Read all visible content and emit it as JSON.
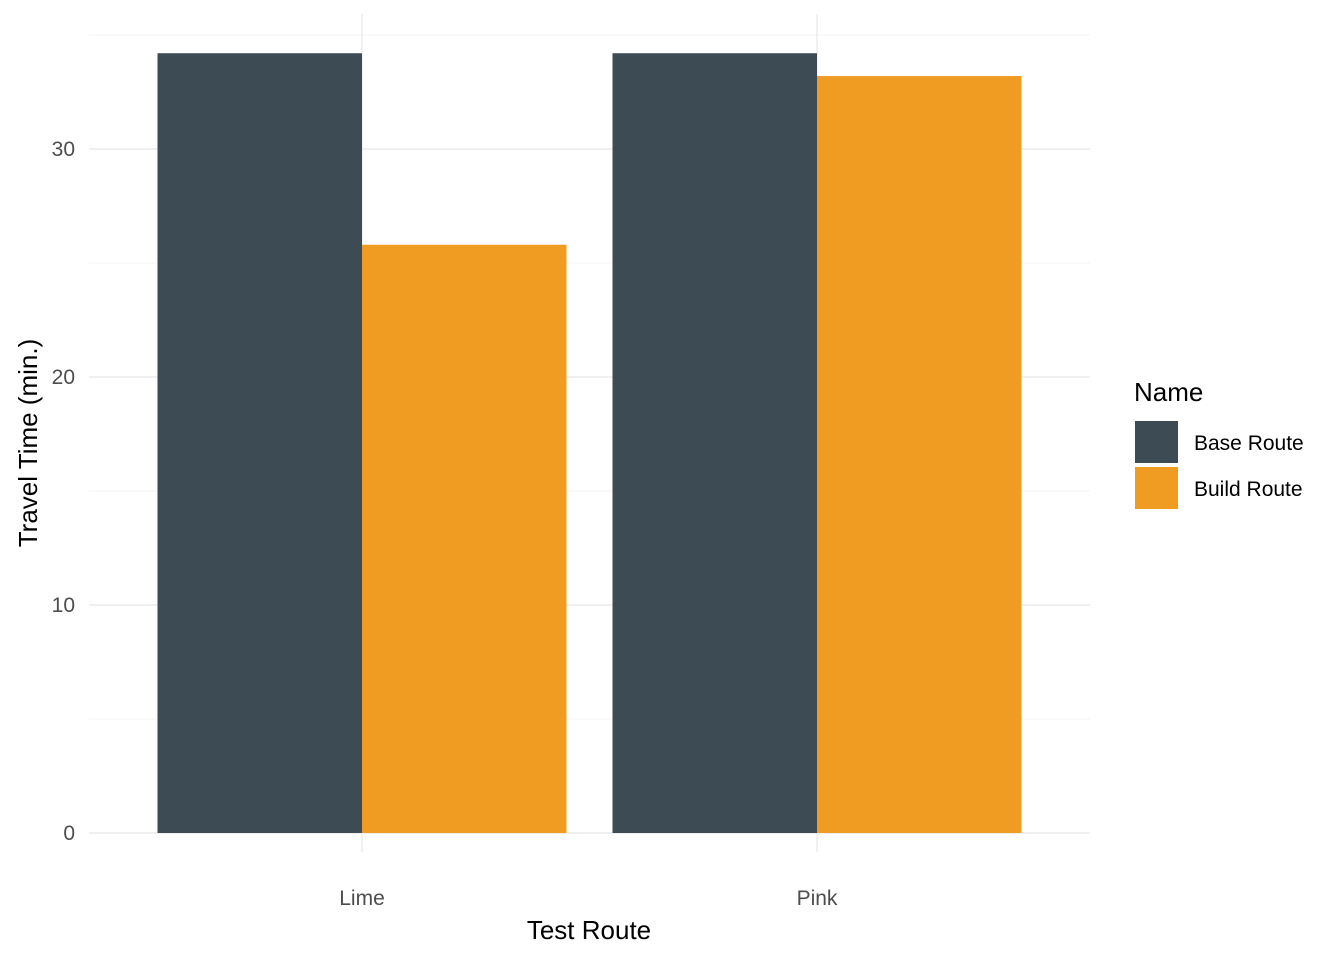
{
  "chart_data": {
    "type": "bar",
    "xlabel": "Test Route",
    "ylabel": "Travel Time (min.)",
    "categories": [
      "Lime",
      "Pink"
    ],
    "ylim": [
      0,
      35
    ],
    "y_ticks": [
      "0",
      "10",
      "20",
      "30"
    ],
    "grid": true,
    "legend": {
      "title": "Name",
      "position": "right"
    },
    "series": [
      {
        "name": "Base Route",
        "color": "#3D4C54",
        "values": [
          34.2,
          34.2
        ]
      },
      {
        "name": "Build Route",
        "color": "#F09C22",
        "values": [
          25.8,
          33.2
        ]
      }
    ]
  }
}
